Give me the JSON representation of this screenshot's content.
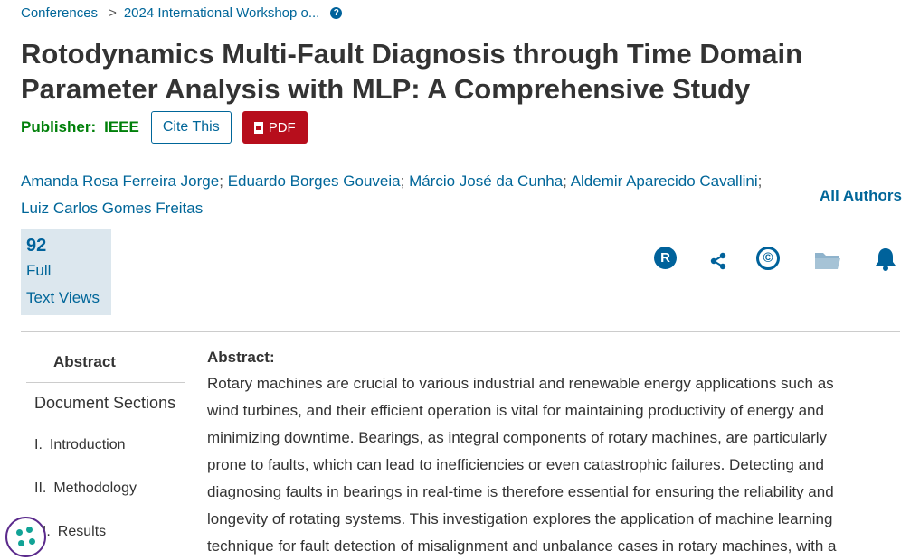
{
  "breadcrumb": {
    "item1": "Conferences",
    "separator": ">",
    "item2": "2024 International Workshop o...",
    "help": "?"
  },
  "title": "Rotodynamics Multi-Fault Diagnosis through Time Domain Parameter Analysis with MLP: A Comprehensive Study",
  "publisher": {
    "label": "Publisher:",
    "name": "IEEE"
  },
  "buttons": {
    "cite": "Cite This",
    "pdf": "PDF"
  },
  "authors": [
    "Amanda Rosa Ferreira Jorge",
    "Eduardo Borges Gouveia",
    "Márcio José da Cunha",
    "Aldemir Aparecido Cavallini",
    "Luiz Carlos Gomes Freitas"
  ],
  "author_separator": ";",
  "all_authors": "All Authors",
  "metric": {
    "value": "92",
    "label_line1": "Full",
    "label_line2": "Text Views"
  },
  "action_icons": [
    "rights-icon",
    "share-icon",
    "copyright-icon",
    "folder-icon",
    "bell-icon"
  ],
  "rights_glyph": "R",
  "copyright_glyph": "©",
  "sidenav": {
    "abstract_tab": "Abstract",
    "document_sections": "Document Sections",
    "sections": [
      {
        "num": "I.",
        "label": "Introduction"
      },
      {
        "num": "II.",
        "label": "Methodology"
      },
      {
        "num": "III.",
        "label": "Results"
      }
    ]
  },
  "abstract": {
    "heading": "Abstract:",
    "lines": [
      "Rotary machines are crucial to various industrial and renewable energy applications such as",
      "wind turbines, and their efficient operation is vital for maintaining productivity of energy and",
      "minimizing downtime. Bearings, as integral components of rotary machines, are particularly",
      "prone to faults, which can lead to inefficiencies or even catastrophic failures. Detecting and",
      "diagnosing faults in bearings in real-time is therefore essential for ensuring the reliability and",
      "longevity of rotating systems. This investigation explores the application of machine learning",
      "technique for fault detection of misalignment and unbalance cases in rotary machines, with a"
    ]
  },
  "colors": {
    "link": "#006699",
    "publisher": "#00800a",
    "pdf": "#b70e1c",
    "metric_bg": "#dce7ee"
  }
}
